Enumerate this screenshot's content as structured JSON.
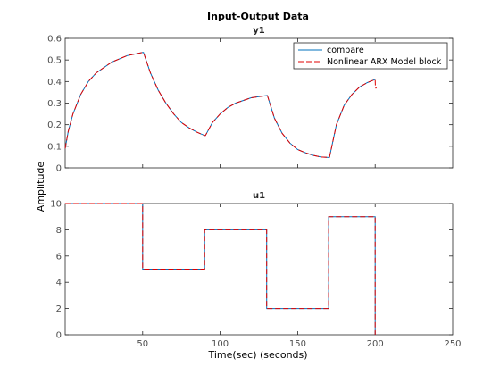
{
  "chart_data": {
    "type": "line",
    "title": "Input-Output Data",
    "xlabel": "Time(sec) (seconds)",
    "ylabel": "Amplitude",
    "colors": {
      "compare": "#0072bd",
      "model": "#e00000",
      "axis": "#262626"
    },
    "legend": {
      "placement": "top-right",
      "entries": [
        "compare",
        "Nonlinear ARX Model block"
      ]
    },
    "subplots": [
      {
        "title": "y1",
        "xlim": [
          0,
          250
        ],
        "ylim": [
          0,
          0.6
        ],
        "xticks": [],
        "yticks": [
          0,
          0.1,
          0.2,
          0.3,
          0.4,
          0.5,
          0.6
        ],
        "ytick_labels": [
          "0",
          "0.1",
          "0.2",
          "0.3",
          "0.4",
          "0.5",
          "0.6"
        ],
        "series": [
          {
            "name": "compare",
            "style": "solid",
            "x": [
              0,
              2,
              5,
              10,
              15,
              20,
              30,
              40,
              50,
              50.5,
              55,
              60,
              65,
              70,
              75,
              80,
              85,
              90,
              90.5,
              95,
              100,
              105,
              110,
              120,
              130,
              130.5,
              135,
              140,
              145,
              150,
              155,
              160,
              165,
              170,
              170.5,
              175,
              180,
              185,
              190,
              195,
              200
            ],
            "y": [
              0.09,
              0.17,
              0.25,
              0.34,
              0.4,
              0.44,
              0.49,
              0.52,
              0.535,
              0.535,
              0.44,
              0.36,
              0.3,
              0.25,
              0.21,
              0.185,
              0.165,
              0.15,
              0.15,
              0.21,
              0.25,
              0.28,
              0.3,
              0.325,
              0.335,
              0.335,
              0.23,
              0.16,
              0.115,
              0.085,
              0.07,
              0.058,
              0.05,
              0.048,
              0.048,
              0.2,
              0.29,
              0.34,
              0.375,
              0.395,
              0.41
            ]
          },
          {
            "name": "Nonlinear ARX Model block",
            "style": "dashed",
            "x": [
              0,
              2,
              5,
              10,
              15,
              20,
              30,
              40,
              50,
              50.5,
              55,
              60,
              65,
              70,
              75,
              80,
              85,
              90,
              90.5,
              95,
              100,
              105,
              110,
              120,
              130,
              130.5,
              135,
              140,
              145,
              150,
              155,
              160,
              165,
              170,
              170.5,
              175,
              180,
              185,
              190,
              195,
              200,
              200.2,
              201
            ],
            "y": [
              0.09,
              0.17,
              0.25,
              0.34,
              0.4,
              0.44,
              0.49,
              0.52,
              0.535,
              0.535,
              0.44,
              0.36,
              0.3,
              0.25,
              0.21,
              0.185,
              0.165,
              0.15,
              0.15,
              0.21,
              0.25,
              0.28,
              0.3,
              0.325,
              0.335,
              0.335,
              0.23,
              0.16,
              0.115,
              0.085,
              0.07,
              0.058,
              0.05,
              0.048,
              0.048,
              0.2,
              0.29,
              0.34,
              0.375,
              0.395,
              0.41,
              0.37,
              0.37
            ]
          }
        ]
      },
      {
        "title": "u1",
        "xlim": [
          0,
          250
        ],
        "ylim": [
          0,
          10
        ],
        "xticks": [
          50,
          100,
          150,
          200,
          250
        ],
        "xtick_labels": [
          "50",
          "100",
          "150",
          "200",
          "250"
        ],
        "yticks": [
          0,
          2,
          4,
          6,
          8,
          10
        ],
        "ytick_labels": [
          "0",
          "2",
          "4",
          "6",
          "8",
          "10"
        ],
        "series": [
          {
            "name": "compare",
            "style": "solid",
            "x": [
              0,
              50,
              50,
              90,
              90,
              130,
              130,
              170,
              170,
              200,
              200
            ],
            "y": [
              10,
              10,
              5,
              5,
              8,
              8,
              2,
              2,
              9,
              9,
              0
            ]
          },
          {
            "name": "Nonlinear ARX Model block",
            "style": "dashed",
            "x": [
              0,
              50,
              50,
              90,
              90,
              130,
              130,
              170,
              170,
              200,
              200
            ],
            "y": [
              10,
              10,
              5,
              5,
              8,
              8,
              2,
              2,
              9,
              9,
              0
            ]
          }
        ]
      }
    ]
  }
}
